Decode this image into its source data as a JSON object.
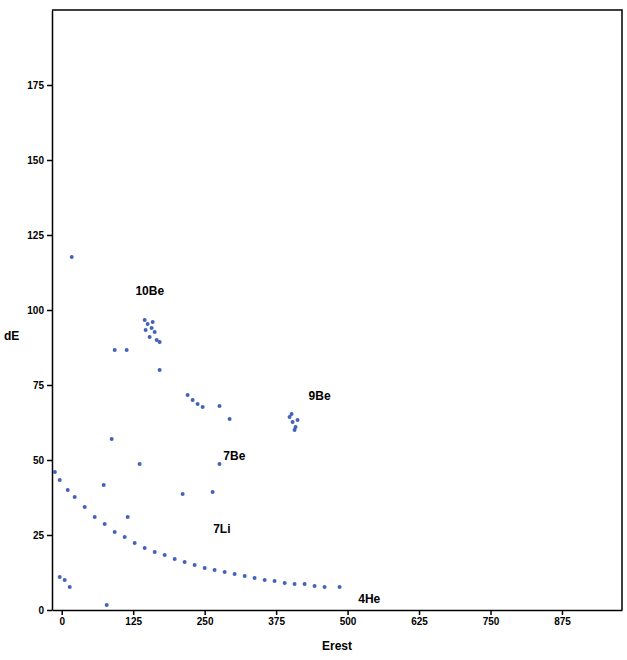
{
  "chart_data": {
    "type": "scatter",
    "xlabel": "Erest",
    "ylabel": "dE",
    "color": "#2346b0",
    "marker": "circle",
    "xlim": [
      -17,
      980
    ],
    "ylim": [
      0,
      200
    ],
    "xticks": [
      0,
      125,
      250,
      375,
      500,
      625,
      750,
      875
    ],
    "yticks": [
      0,
      25,
      50,
      75,
      100,
      125,
      150,
      175
    ],
    "x": [
      -12,
      -3.5,
      10.5,
      22.7,
      40.2,
      57.7,
      75.2,
      92.7,
      110.1,
      127.6,
      145.1,
      162.6,
      180.1,
      197.6,
      215,
      232.5,
      250,
      267.4,
      285,
      302.4,
      320,
      337.4,
      355,
      372.3,
      390,
      407.3,
      424.8,
      442.2,
      459.7,
      486,
      145.1,
      150.3,
      157.3,
      162.6,
      153.8,
      166.1,
      171.3,
      146.8,
      159.1,
      398.5,
      403.8,
      409,
      412.5,
      407.3,
      402,
      220.2,
      229,
      237.7,
      246.5,
      17.5,
      92.7,
      113.6,
      171.3,
      87.4,
      136.3,
      73.4,
      115.4,
      211.5,
      276,
      293.7,
      276,
      264,
      78.7,
      5.2,
      14,
      -3.5
    ],
    "values": [
      46,
      43.3,
      40,
      37.7,
      34.3,
      31,
      28.7,
      26,
      24.3,
      22.3,
      20.7,
      19.3,
      18.3,
      17,
      16,
      15,
      14,
      13.3,
      12.7,
      12,
      11.3,
      10.7,
      10,
      9.7,
      9,
      8.7,
      8.7,
      8,
      7.7,
      7.7,
      96.7,
      95.3,
      94,
      92.7,
      91,
      90,
      89.3,
      93.3,
      96,
      64.3,
      62.7,
      61,
      63.3,
      60,
      65.3,
      71.7,
      70,
      68.7,
      67.7,
      117.7,
      86.7,
      86.7,
      80,
      57,
      48.7,
      41.7,
      31,
      38.7,
      68,
      63.7,
      48.7,
      39.3,
      1.7,
      10,
      7.7,
      11
    ],
    "annotations": [
      {
        "text": "10Be",
        "x": 154,
        "y": 106
      },
      {
        "text": "9Be",
        "x": 451,
        "y": 71
      },
      {
        "text": "7Be",
        "x": 302,
        "y": 51
      },
      {
        "text": "7Li",
        "x": 280,
        "y": 26.7
      },
      {
        "text": "4He",
        "x": 538,
        "y": 3.3
      }
    ]
  }
}
